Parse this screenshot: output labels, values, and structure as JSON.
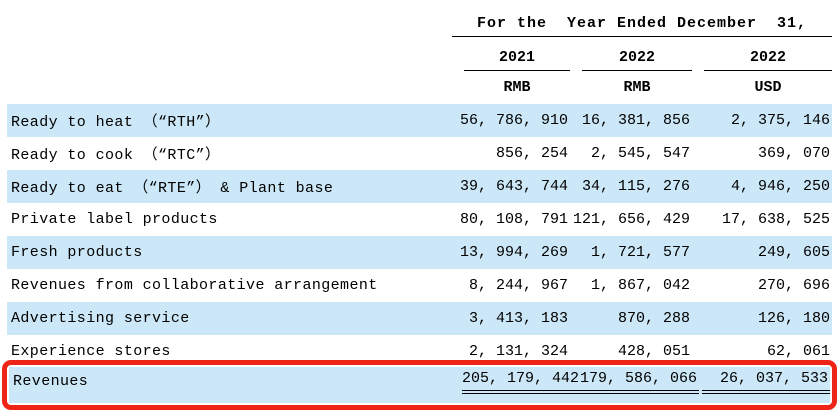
{
  "colors": {
    "stripe_blue": "#cce8f8",
    "highlight_red": "#ee2417",
    "text": "#000000"
  },
  "table": {
    "title": "For the  Year Ended December  31,",
    "columns": [
      {
        "year": "2021",
        "currency": "RMB"
      },
      {
        "year": "2022",
        "currency": "RMB"
      },
      {
        "year": "2022",
        "currency": "USD"
      }
    ],
    "rows": [
      {
        "label": "Ready to heat （“RTH”）",
        "values": [
          "56, 786, 910",
          "16, 381, 856",
          "2, 375, 146"
        ]
      },
      {
        "label": "Ready to cook （“RTC”）",
        "values": [
          "856, 254",
          "2, 545, 547",
          "369, 070"
        ]
      },
      {
        "label": "Ready to eat （“RTE”） & Plant base",
        "values": [
          "39, 643, 744",
          "34, 115, 276",
          "4, 946, 250"
        ]
      },
      {
        "label": "Private label products",
        "values": [
          "80, 108, 791",
          "121, 656, 429",
          "17, 638, 525"
        ]
      },
      {
        "label": "Fresh products",
        "values": [
          "13, 994, 269",
          "1, 721, 577",
          "249, 605"
        ]
      },
      {
        "label": "Revenues from collaborative arrangement",
        "values": [
          "8, 244, 967",
          "1, 867, 042",
          "270, 696"
        ]
      },
      {
        "label": "Advertising service",
        "values": [
          "3, 413, 183",
          "870, 288",
          "126, 180"
        ]
      },
      {
        "label": "Experience stores",
        "values": [
          "2, 131, 324",
          "428, 051",
          "62, 061"
        ]
      }
    ],
    "total": {
      "label": "Revenues",
      "values": [
        "205, 179, 442",
        "179, 586, 066",
        "26, 037, 533"
      ]
    }
  }
}
